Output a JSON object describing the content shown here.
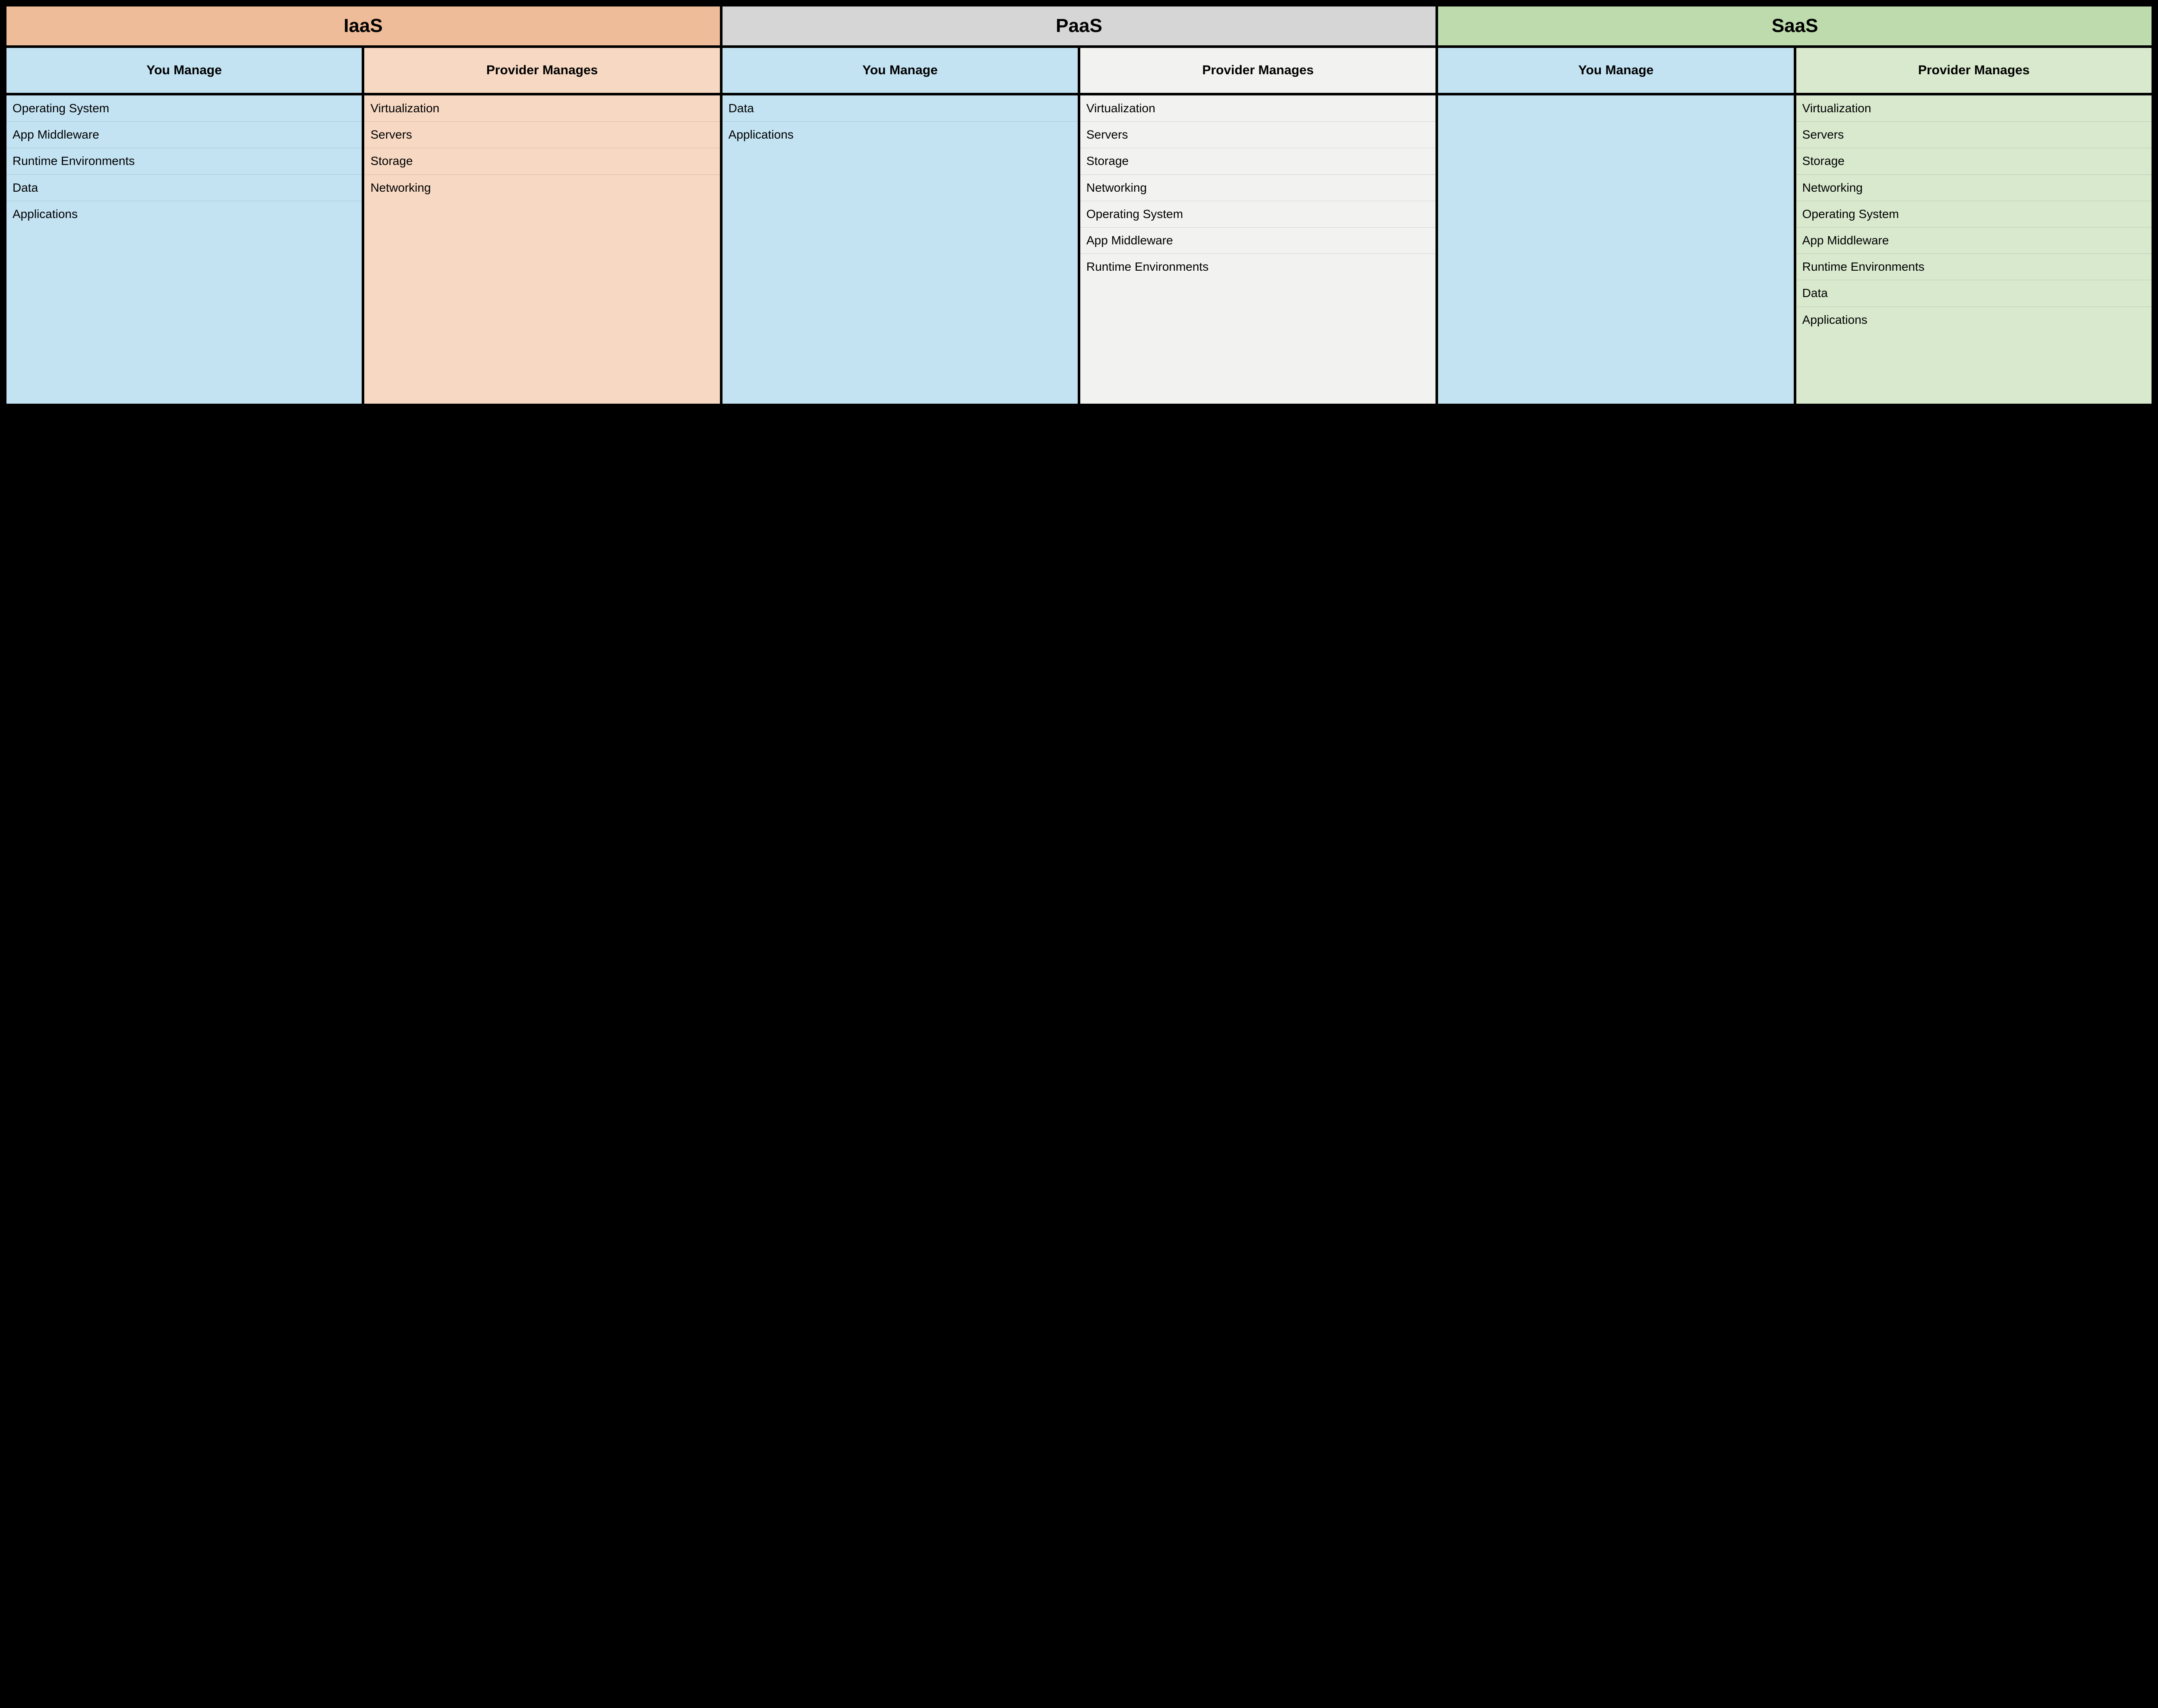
{
  "type": "table",
  "background_color": "#000000",
  "border_color": "#000000",
  "font_family": "Arial",
  "header_fontsize": 44,
  "subheader_fontsize": 30,
  "item_fontsize": 28,
  "colors": {
    "you_manage_bg": "#c3e3f3",
    "iaas_header_bg": "#efbc99",
    "iaas_provider_bg": "#f7d8c3",
    "paas_header_bg": "#d6d6d6",
    "paas_provider_bg": "#f2f2f0",
    "saas_header_bg": "#bddbac",
    "saas_provider_bg": "#d8e9cd"
  },
  "labels": {
    "you_manage": "You Manage",
    "provider_manages": "Provider Manages"
  },
  "models": [
    {
      "name": "IaaS",
      "header_bg": "#efbc99",
      "provider_bg": "#f7d8c3",
      "you_manage": [
        "Operating System",
        "App Middleware",
        "Runtime Environments",
        "Data",
        "Applications"
      ],
      "provider_manages": [
        "Virtualization",
        "Servers",
        "Storage",
        "Networking"
      ]
    },
    {
      "name": "PaaS",
      "header_bg": "#d6d6d6",
      "provider_bg": "#f2f2f0",
      "you_manage": [
        "Data",
        "Applications"
      ],
      "provider_manages": [
        "Virtualization",
        "Servers",
        "Storage",
        "Networking",
        "Operating System",
        "App Middleware",
        "Runtime Environments"
      ]
    },
    {
      "name": "SaaS",
      "header_bg": "#bddbac",
      "provider_bg": "#d8e9cd",
      "you_manage": [],
      "provider_manages": [
        "Virtualization",
        "Servers",
        "Storage",
        "Networking",
        "Operating System",
        "App Middleware",
        "Runtime Environments",
        "Data",
        "Applications"
      ]
    }
  ]
}
